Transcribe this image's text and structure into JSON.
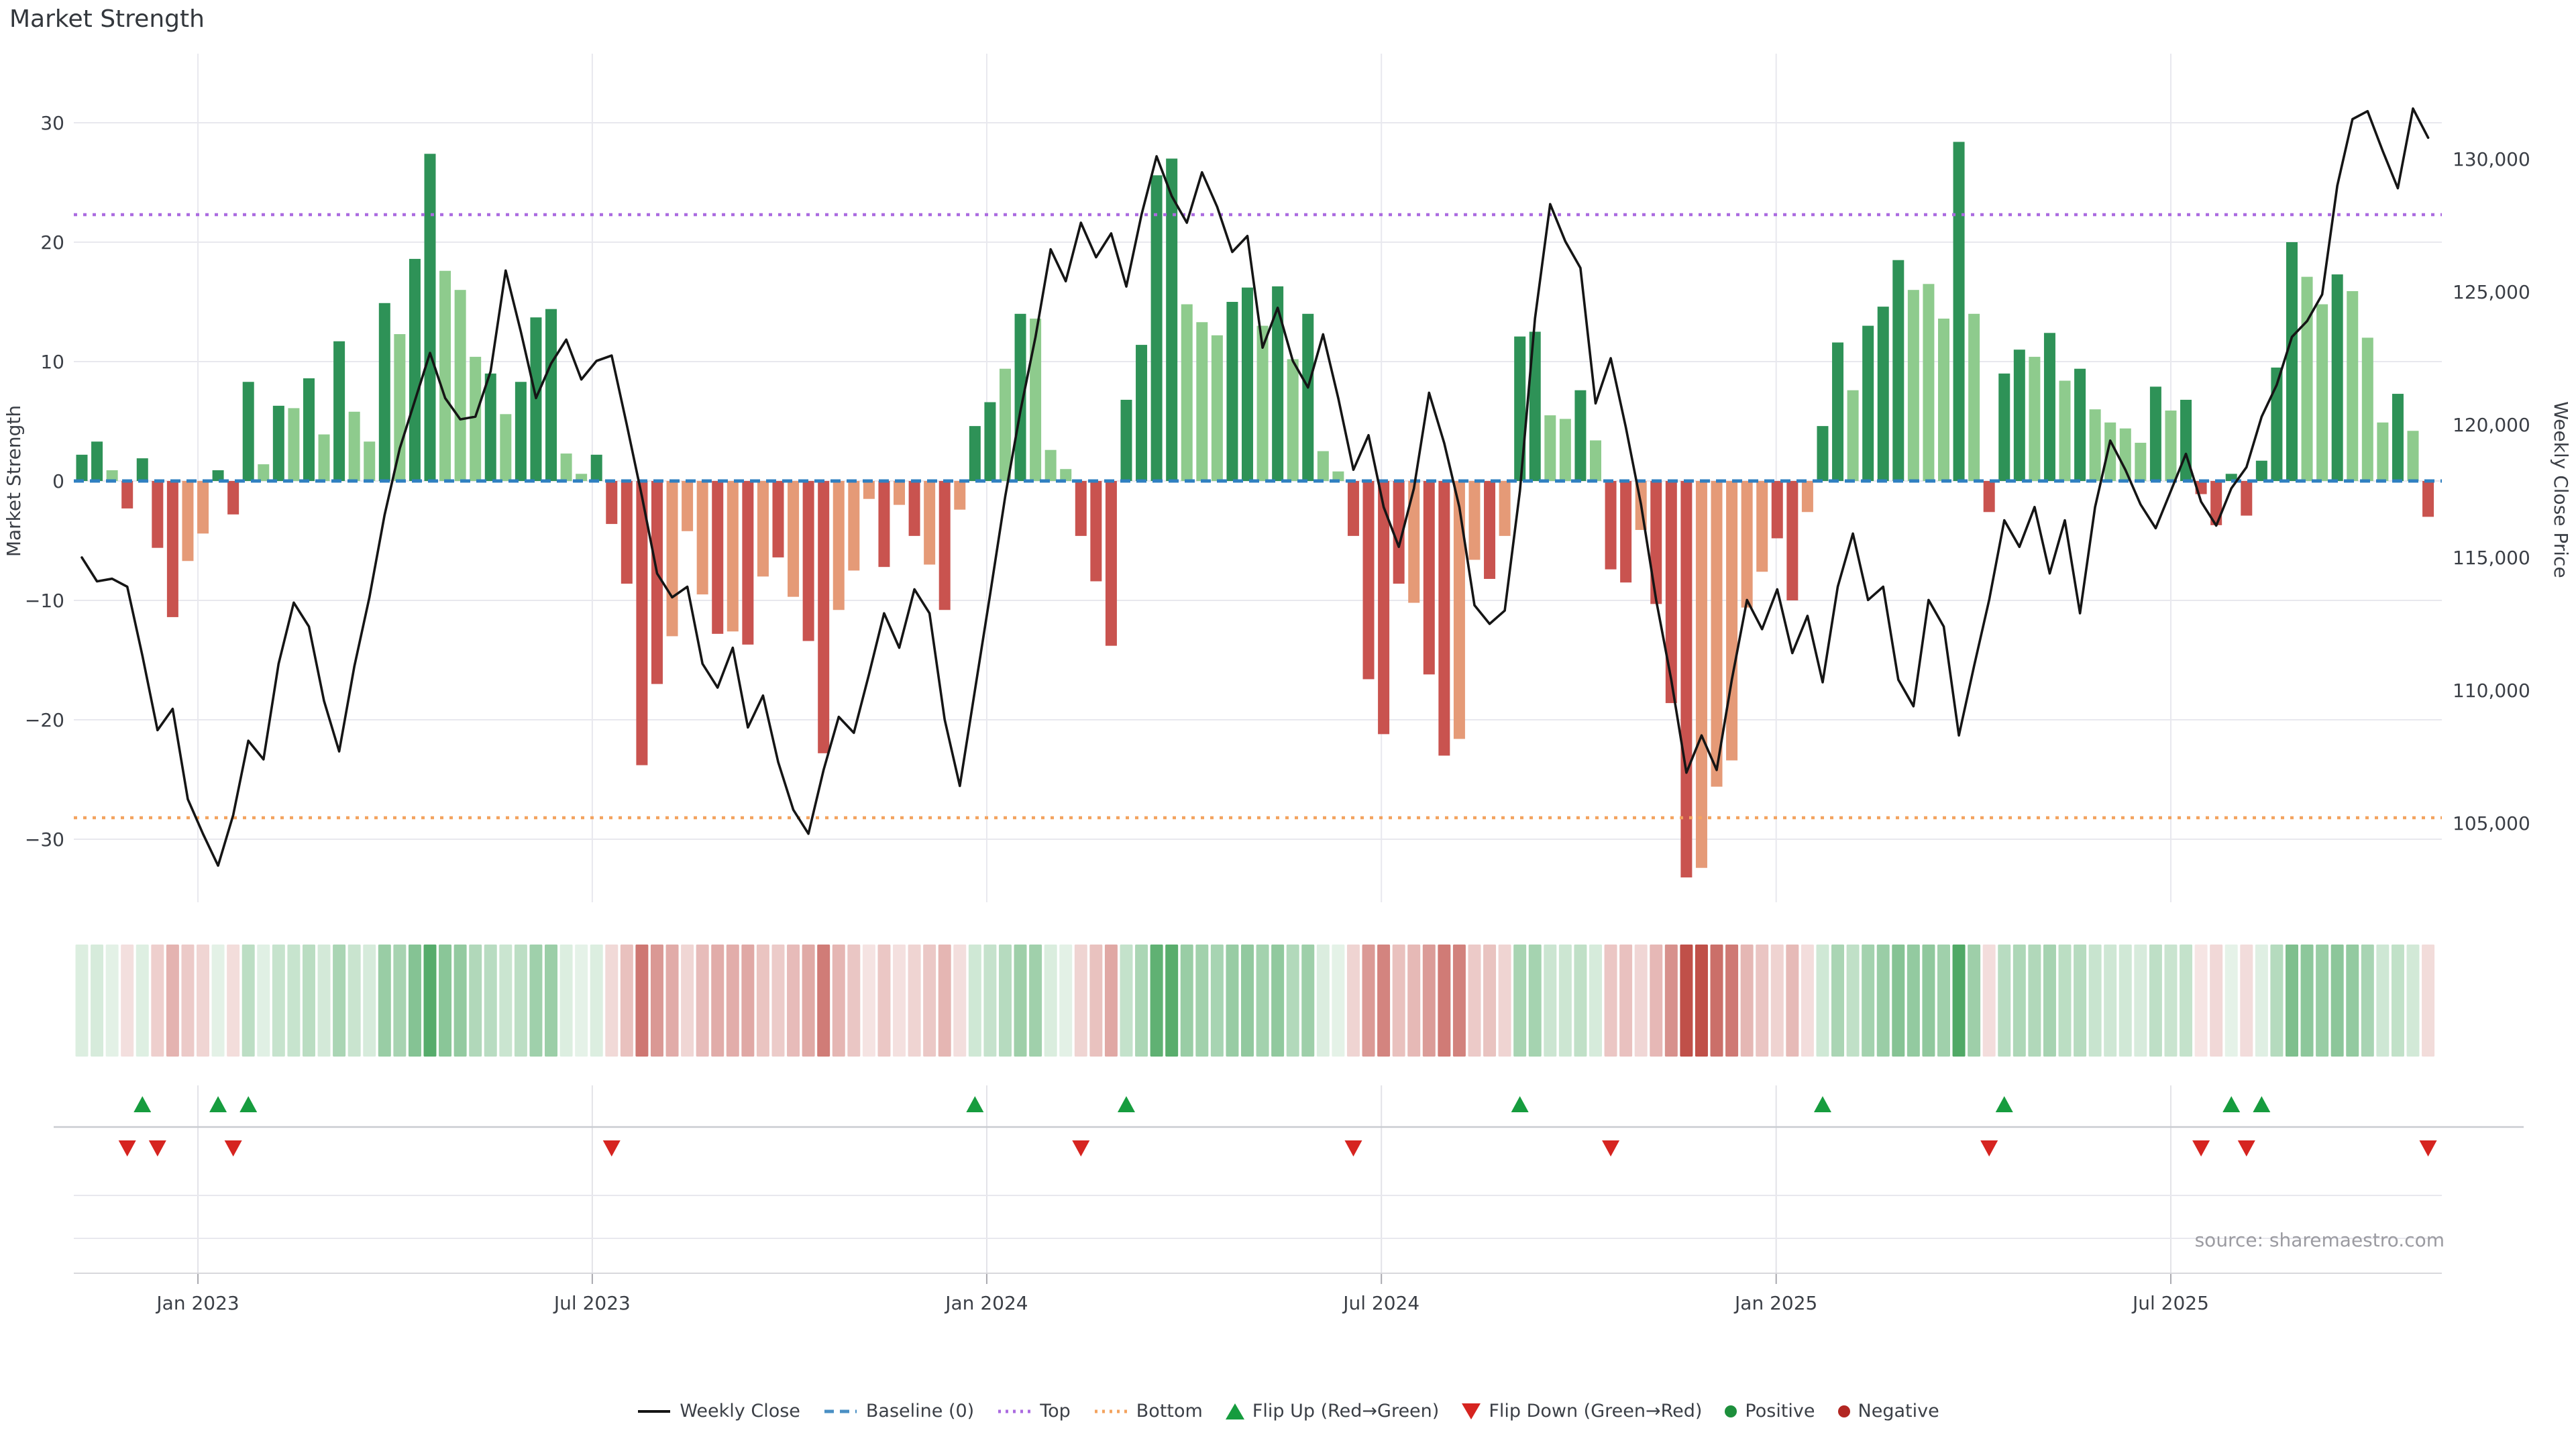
{
  "page": {
    "title": "Market Strength",
    "source_note": "source: sharemaestro.com"
  },
  "colors": {
    "bar_dark_green": "#2e9257",
    "bar_light_green": "#8ecb8d",
    "bar_dark_red": "#c9534f",
    "bar_salmon": "#e59a77",
    "close_line": "#151515",
    "baseline": "#2f7fc1",
    "top_line": "#ab6be0",
    "bottom_line": "#f3a35f",
    "flip_up": "#169c3e",
    "flip_down": "#d62420",
    "positive_dot": "#1d8f3c",
    "negative_dot": "#b22622",
    "heat_green_base": "#3ea055",
    "heat_red_base": "#c05049",
    "grid": "#e8e8ee",
    "axis_text": "#3b3f46"
  },
  "chart_data": {
    "type": "bar",
    "title": "Market Strength",
    "weeks": 156,
    "left_axis": {
      "title": "Market Strength",
      "tick_labels": [
        "30",
        "20",
        "10",
        "0",
        "−10",
        "−20",
        "−30"
      ],
      "tick_values": [
        30,
        20,
        10,
        0,
        -10,
        -20,
        -30
      ],
      "range": [
        -35.8,
        33.5
      ]
    },
    "right_axis": {
      "title": "Weekly Close Price",
      "tick_labels": [
        "130,000",
        "125,000",
        "120,000",
        "115,000",
        "110,000",
        "105,000"
      ],
      "tick_values": [
        130000,
        125000,
        120000,
        115000,
        110000,
        105000
      ],
      "range": [
        102500,
        133600
      ]
    },
    "x_axis": {
      "tick_labels": [
        "Jan 2023",
        "Jul 2023",
        "Jan 2024",
        "Jul 2024",
        "Jan 2025",
        "Jul 2025"
      ],
      "tick_weeks": [
        7.67,
        33.72,
        59.78,
        85.85,
        111.93,
        138.0
      ]
    },
    "reference_lines": {
      "baseline": 0,
      "top": 22.3,
      "bottom": -28.2
    },
    "series": [
      {
        "name": "Market Strength",
        "type": "bar",
        "values": [
          2.2,
          3.3,
          0.9,
          -2.3,
          1.9,
          -5.6,
          -11.4,
          -6.7,
          -4.4,
          0.9,
          -2.8,
          8.3,
          1.4,
          6.3,
          6.1,
          8.6,
          3.9,
          11.7,
          5.8,
          3.3,
          14.9,
          12.3,
          18.6,
          27.4,
          17.6,
          16.0,
          10.4,
          9.0,
          5.6,
          8.3,
          13.7,
          14.4,
          2.3,
          0.6,
          2.2,
          -3.6,
          -8.6,
          -23.8,
          -17.0,
          -13.0,
          -4.2,
          -9.5,
          -12.8,
          -12.6,
          -13.7,
          -8.0,
          -6.4,
          -9.7,
          -13.4,
          -22.8,
          -10.8,
          -7.5,
          -1.5,
          -7.2,
          -2.0,
          -4.6,
          -7.0,
          -10.8,
          -2.4,
          4.6,
          6.6,
          9.4,
          14.0,
          13.6,
          2.6,
          1.0,
          -4.6,
          -8.4,
          -13.8,
          6.8,
          11.4,
          25.6,
          27.0,
          14.8,
          13.3,
          12.2,
          15.0,
          16.2,
          13.0,
          16.3,
          10.2,
          14.0,
          2.5,
          0.8,
          -4.6,
          -16.6,
          -21.2,
          -8.6,
          -10.2,
          -16.2,
          -23.0,
          -21.6,
          -6.6,
          -8.2,
          -4.6,
          12.1,
          12.5,
          5.5,
          5.2,
          7.6,
          3.4,
          -7.4,
          -8.5,
          -4.1,
          -10.3,
          -18.6,
          -33.2,
          -32.4,
          -25.6,
          -23.4,
          -10.6,
          -7.6,
          -4.8,
          -10.0,
          -2.6,
          4.6,
          11.6,
          7.6,
          13.0,
          14.6,
          18.5,
          16.0,
          16.5,
          13.6,
          28.4,
          14.0,
          -2.6,
          9.0,
          11.0,
          10.4,
          12.4,
          8.4,
          9.4,
          6.0,
          4.9,
          4.4,
          3.2,
          7.9,
          5.9,
          6.8,
          -1.1,
          -3.7,
          0.6,
          -2.9,
          1.7,
          9.5,
          20.0,
          17.1,
          14.8,
          17.3,
          15.9,
          12.0,
          4.9,
          7.3,
          4.2,
          -3.0
        ],
        "tones": "DDLRDRRSSDRDLDLDLDLLDLDDLLLDLDDDLLDRRRRSSSRSRSRSRRSSSRSRSRSDDLDLLLRRRDDDDLLLDDLDLDLLRRRRSRRSSRSDDLLDLRRSRRRSSSSSRRSDDLDDDLLLDLRDDLDLDLLLLDLDRRDRDDDLLDLLLDLR",
        "tone_legend": {
          "D": "dark green (strong positive)",
          "L": "light green (positive)",
          "R": "dark red (strong negative)",
          "S": "salmon (negative)"
        }
      },
      {
        "name": "Weekly Close",
        "type": "line",
        "values": [
          115000,
          114100,
          114200,
          113900,
          111300,
          108500,
          109300,
          105900,
          104600,
          103400,
          105300,
          108100,
          107400,
          111000,
          113300,
          112400,
          109600,
          107700,
          110900,
          113500,
          116600,
          119100,
          120900,
          122700,
          121000,
          120200,
          120300,
          122000,
          125800,
          123500,
          121000,
          122300,
          123200,
          121700,
          122400,
          122600,
          120000,
          117300,
          114400,
          113500,
          113900,
          111000,
          110100,
          111600,
          108600,
          109800,
          107300,
          105500,
          104600,
          107000,
          109000,
          108400,
          110600,
          112900,
          111600,
          113800,
          112900,
          108900,
          106400,
          110000,
          113600,
          117300,
          120500,
          123300,
          126600,
          125400,
          127600,
          126300,
          127200,
          125200,
          127900,
          130100,
          128600,
          127600,
          129500,
          128200,
          126500,
          127100,
          122900,
          124400,
          122400,
          121400,
          123400,
          121000,
          118300,
          119600,
          116900,
          115400,
          117600,
          121200,
          119300,
          116900,
          113200,
          112500,
          113000,
          117500,
          124000,
          128300,
          126900,
          125900,
          120800,
          122500,
          119900,
          117000,
          113400,
          110400,
          106900,
          108300,
          107000,
          110400,
          113400,
          112300,
          113800,
          111400,
          112800,
          110300,
          113900,
          115900,
          113400,
          113900,
          110400,
          109400,
          113400,
          112400,
          108300,
          110900,
          113400,
          116400,
          115400,
          116900,
          114400,
          116400,
          112900,
          116900,
          119400,
          118300,
          117000,
          116100,
          117500,
          118900,
          117100,
          116200,
          117600,
          118400,
          120300,
          121500,
          123300,
          123900,
          124900,
          129000,
          131500,
          131800,
          130300,
          128900,
          131900,
          130800
        ]
      }
    ],
    "flip_up_weeks": [
      4,
      9,
      11,
      59,
      69,
      95,
      115,
      127,
      142,
      144
    ],
    "flip_down_weeks": [
      3,
      5,
      10,
      35,
      66,
      84,
      101,
      126,
      140,
      143,
      155
    ],
    "heatmap": {
      "description": "one cell per week, colored by Market Strength value",
      "source_series": "Market Strength"
    },
    "legend_position": "bottom center",
    "grid": true
  },
  "legend": {
    "items": [
      {
        "label": "Weekly Close",
        "type": "line",
        "color": "#151515"
      },
      {
        "label": "Baseline (0)",
        "type": "dashed",
        "color": "#4a90c4"
      },
      {
        "label": "Top",
        "type": "dotted",
        "color": "#ab6be0"
      },
      {
        "label": "Bottom",
        "type": "dotted",
        "color": "#f3a35f"
      },
      {
        "label": "Flip Up (Red→Green)",
        "type": "triangle-up",
        "color": "#169c3e"
      },
      {
        "label": "Flip Down (Green→Red)",
        "type": "triangle-down",
        "color": "#d62420"
      },
      {
        "label": "Positive",
        "type": "circle",
        "color": "#1d8f3c"
      },
      {
        "label": "Negative",
        "type": "circle",
        "color": "#b22622"
      }
    ]
  }
}
